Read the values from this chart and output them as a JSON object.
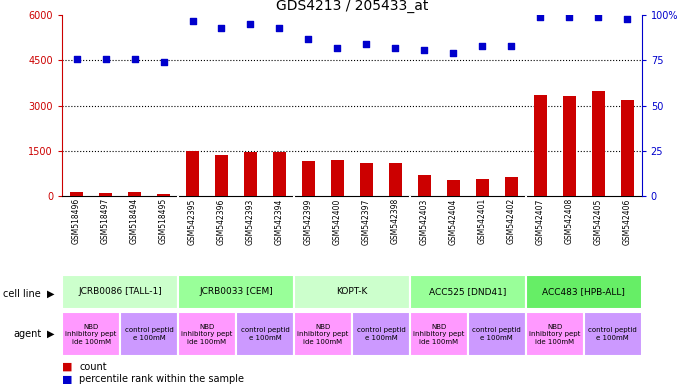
{
  "title": "GDS4213 / 205433_at",
  "samples": [
    "GSM518496",
    "GSM518497",
    "GSM518494",
    "GSM518495",
    "GSM542395",
    "GSM542396",
    "GSM542393",
    "GSM542394",
    "GSM542399",
    "GSM542400",
    "GSM542397",
    "GSM542398",
    "GSM542403",
    "GSM542404",
    "GSM542401",
    "GSM542402",
    "GSM542407",
    "GSM542408",
    "GSM542405",
    "GSM542406"
  ],
  "counts": [
    120,
    110,
    115,
    70,
    1500,
    1370,
    1450,
    1470,
    1150,
    1180,
    1100,
    1080,
    680,
    520,
    560,
    620,
    3350,
    3320,
    3480,
    3180
  ],
  "percentile": [
    76,
    76,
    76,
    74,
    97,
    93,
    95,
    93,
    87,
    82,
    84,
    82,
    81,
    79,
    83,
    83,
    99,
    99,
    99,
    98
  ],
  "cell_lines": [
    {
      "label": "JCRB0086 [TALL-1]",
      "start": 0,
      "end": 4,
      "color": "#ccffcc"
    },
    {
      "label": "JCRB0033 [CEM]",
      "start": 4,
      "end": 8,
      "color": "#99ff99"
    },
    {
      "label": "KOPT-K",
      "start": 8,
      "end": 12,
      "color": "#ccffcc"
    },
    {
      "label": "ACC525 [DND41]",
      "start": 12,
      "end": 16,
      "color": "#99ff99"
    },
    {
      "label": "ACC483 [HPB-ALL]",
      "start": 16,
      "end": 20,
      "color": "#66ee66"
    }
  ],
  "agents": [
    {
      "label": "NBD\ninhibitory pept\nide 100mM",
      "start": 0,
      "end": 2,
      "color": "#ff99ff"
    },
    {
      "label": "control peptid\ne 100mM",
      "start": 2,
      "end": 4,
      "color": "#cc99ff"
    },
    {
      "label": "NBD\ninhibitory pept\nide 100mM",
      "start": 4,
      "end": 6,
      "color": "#ff99ff"
    },
    {
      "label": "control peptid\ne 100mM",
      "start": 6,
      "end": 8,
      "color": "#cc99ff"
    },
    {
      "label": "NBD\ninhibitory pept\nide 100mM",
      "start": 8,
      "end": 10,
      "color": "#ff99ff"
    },
    {
      "label": "control peptid\ne 100mM",
      "start": 10,
      "end": 12,
      "color": "#cc99ff"
    },
    {
      "label": "NBD\ninhibitory pept\nide 100mM",
      "start": 12,
      "end": 14,
      "color": "#ff99ff"
    },
    {
      "label": "control peptid\ne 100mM",
      "start": 14,
      "end": 16,
      "color": "#cc99ff"
    },
    {
      "label": "NBD\ninhibitory pept\nide 100mM",
      "start": 16,
      "end": 18,
      "color": "#ff99ff"
    },
    {
      "label": "control peptid\ne 100mM",
      "start": 18,
      "end": 20,
      "color": "#cc99ff"
    }
  ],
  "ylim_left": [
    0,
    6000
  ],
  "ylim_right": [
    0,
    100
  ],
  "yticks_left": [
    0,
    1500,
    3000,
    4500,
    6000
  ],
  "yticks_right": [
    0,
    25,
    50,
    75,
    100
  ],
  "ytick_labels_right": [
    "0",
    "25",
    "50",
    "75",
    "100%"
  ],
  "bar_color": "#cc0000",
  "dot_color": "#0000cc",
  "bg_color": "#e8e8e8",
  "grid_color": "#000000",
  "title_fontsize": 10,
  "tick_fontsize": 7,
  "label_fontsize": 7
}
